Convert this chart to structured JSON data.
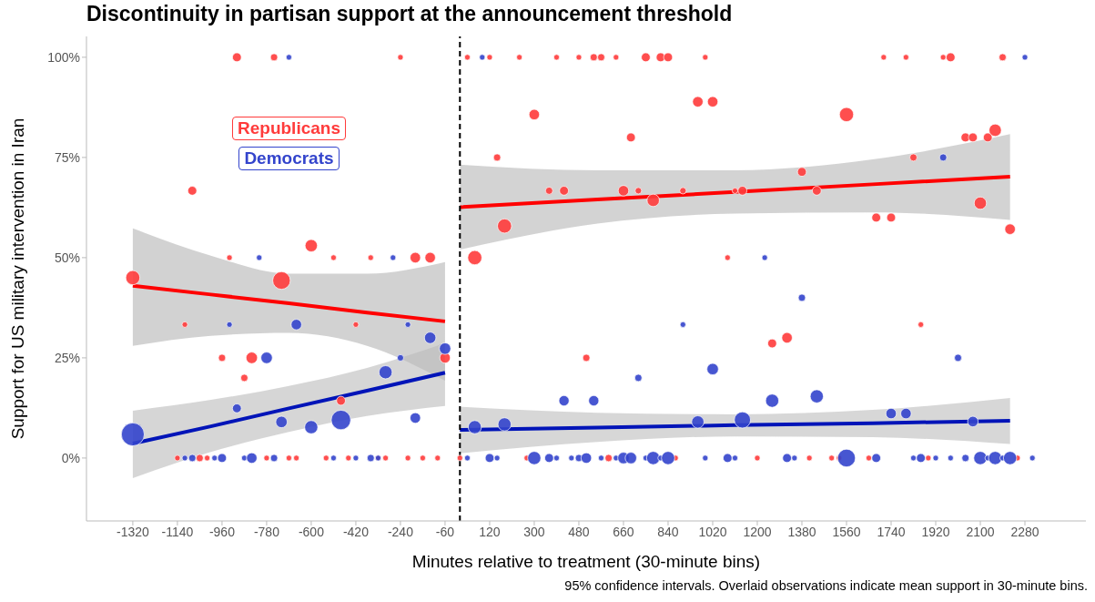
{
  "chart_data": {
    "type": "bubble",
    "title": "Discontinuity in partisan support at the announcement threshold",
    "xlabel": "Minutes relative to treatment (30-minute bins)",
    "ylabel": "Support for US military intervention in Iran",
    "annotations": [
      "95% confidence intervals. Overlaid observations indicate mean support in 30-minute bins."
    ],
    "xlim": [
      -1507,
      2526
    ],
    "ylim": [
      -15.7,
      105.2
    ],
    "xticks": [
      -1320,
      -1140,
      -960,
      -780,
      -600,
      -420,
      -240,
      -60,
      120,
      300,
      480,
      660,
      840,
      1020,
      1200,
      1380,
      1560,
      1740,
      1920,
      2100,
      2280
    ],
    "yticks": [
      {
        "value": 0,
        "label": "0%"
      },
      {
        "value": 25,
        "label": "25%"
      },
      {
        "value": 50,
        "label": "50%"
      },
      {
        "value": 75,
        "label": "75%"
      },
      {
        "value": 100,
        "label": "100%"
      }
    ],
    "legend": "top left",
    "ref_lines": [
      {
        "axis": "x",
        "value": 0,
        "color": "#000000",
        "line_style": "dashed"
      }
    ],
    "series": [
      {
        "type": "line",
        "color": "#ff0000",
        "x": [
          -1320,
          -1005,
          -690,
          -375,
          -60
        ],
        "values": [
          43,
          40.8,
          38.6,
          36.3,
          34.1
        ],
        "lower": [
          28,
          30.5,
          31.2,
          28,
          19.3
        ],
        "upper": [
          57.3,
          50.5,
          46,
          46,
          48.9
        ]
      },
      {
        "type": "line",
        "color": "#0014b8",
        "x": [
          -1320,
          -1005,
          -690,
          -375,
          -60
        ],
        "values": [
          3.6,
          7.9,
          12.4,
          16.8,
          21.3
        ],
        "lower": [
          -5,
          1.5,
          6.5,
          10.5,
          13
        ],
        "upper": [
          11.8,
          14.5,
          18,
          22.5,
          28.7
        ]
      },
      {
        "type": "line",
        "color": "#ff0000",
        "x": [
          0,
          555,
          1110,
          1665,
          2220
        ],
        "values": [
          62.6,
          64.5,
          66.4,
          68.3,
          70.2
        ],
        "lower": [
          52,
          58.5,
          61,
          61.3,
          59.4
        ],
        "upper": [
          73.2,
          71.8,
          71.8,
          74.5,
          80.8
        ]
      },
      {
        "type": "line",
        "color": "#0014b8",
        "x": [
          0,
          555,
          1110,
          1665,
          2220
        ],
        "values": [
          7,
          7.6,
          8.2,
          8.7,
          9.3
        ],
        "lower": [
          1.2,
          4,
          5.4,
          5.2,
          3.5
        ],
        "upper": [
          12.8,
          11.3,
          10.9,
          12,
          15
        ]
      },
      {
        "name": "Republicans",
        "marker": "circle",
        "color": "#ff3b3b",
        "x": [
          -900,
          -750,
          -240,
          30,
          120,
          240,
          390,
          480,
          540,
          570,
          630,
          750,
          810,
          840,
          990,
          1710,
          1800,
          1950,
          1980,
          2190,
          -1080,
          -600,
          -120,
          -180,
          -360,
          -510,
          -930,
          -1320,
          -720,
          -1110,
          -420,
          -960,
          -840,
          -870,
          -480,
          -60,
          -1140,
          -1050,
          -1020,
          -780,
          -690,
          -660,
          -540,
          -450,
          -330,
          -300,
          -210,
          -150,
          -90,
          300,
          150,
          690,
          960,
          1020,
          360,
          420,
          660,
          720,
          900,
          1110,
          1140,
          780,
          180,
          60,
          1080,
          1560,
          2040,
          2070,
          2130,
          2160,
          1830,
          1380,
          1440,
          1680,
          1740,
          2100,
          2220,
          510,
          1260,
          1320,
          1860,
          0,
          270,
          600,
          870,
          1200,
          1410,
          1500,
          1530,
          1650,
          1890,
          2250
        ],
        "values": [
          100,
          100,
          100,
          100,
          100,
          100,
          100,
          100,
          100,
          100,
          100,
          100,
          100,
          100,
          100,
          100,
          100,
          100,
          100,
          100,
          66.7,
          53,
          50,
          50,
          50,
          50,
          50,
          45,
          44.3,
          33.3,
          33.3,
          25,
          25,
          20,
          14.3,
          25,
          0,
          0,
          0,
          0,
          0,
          0,
          0,
          0,
          0,
          0,
          0,
          0,
          0,
          85.7,
          75,
          80,
          88.9,
          88.9,
          66.7,
          66.7,
          66.7,
          66.7,
          66.7,
          66.7,
          66.7,
          64.3,
          57.9,
          50,
          50,
          85.7,
          80,
          80,
          80,
          81.8,
          75,
          71.4,
          66.7,
          60,
          60,
          63.6,
          57.1,
          25,
          28.6,
          30,
          33.3,
          0,
          0,
          0,
          0,
          0,
          0,
          0,
          0,
          0,
          0,
          0
        ],
        "sizes": [
          0.15,
          0.1,
          0.06,
          0.06,
          0.06,
          0.06,
          0.06,
          0.06,
          0.1,
          0.1,
          0.06,
          0.15,
          0.15,
          0.15,
          0.06,
          0.06,
          0.06,
          0.06,
          0.15,
          0.1,
          0.15,
          0.29,
          0.21,
          0.21,
          0.06,
          0.06,
          0.06,
          0.38,
          0.59,
          0.06,
          0.06,
          0.1,
          0.25,
          0.1,
          0.15,
          0.21,
          0.06,
          0.1,
          0.06,
          0.06,
          0.06,
          0.06,
          0.06,
          0.06,
          0.06,
          0.06,
          0.06,
          0.06,
          0.06,
          0.21,
          0.1,
          0.15,
          0.21,
          0.21,
          0.1,
          0.15,
          0.21,
          0.08,
          0.08,
          0.06,
          0.15,
          0.29,
          0.38,
          0.38,
          0.06,
          0.38,
          0.15,
          0.15,
          0.15,
          0.29,
          0.1,
          0.15,
          0.15,
          0.15,
          0.15,
          0.29,
          0.21,
          0.1,
          0.15,
          0.21,
          0.06,
          0.06,
          0.06,
          0.1,
          0.06,
          0.06,
          0.06,
          0.06,
          0.06,
          0.06,
          0.06,
          0.06
        ]
      },
      {
        "name": "Democrats",
        "marker": "circle",
        "color": "#3344cc",
        "x": [
          -690,
          90,
          2280,
          -1320,
          -930,
          -660,
          -210,
          -120,
          -60,
          -780,
          -240,
          -300,
          -900,
          -720,
          -600,
          -480,
          -180,
          -810,
          -270,
          -1110,
          -1080,
          -990,
          -960,
          -870,
          -840,
          -750,
          -510,
          -420,
          -360,
          -330,
          1230,
          1950,
          900,
          1020,
          720,
          420,
          540,
          60,
          180,
          960,
          1140,
          1380,
          1260,
          1440,
          1740,
          1800,
          2010,
          2070,
          30,
          120,
          150,
          300,
          360,
          390,
          450,
          480,
          510,
          570,
          630,
          660,
          690,
          750,
          780,
          810,
          840,
          990,
          1080,
          1110,
          1320,
          1350,
          1560,
          1680,
          1830,
          1860,
          1920,
          1980,
          2040,
          2100,
          2130,
          2160,
          2190,
          2220,
          2310
        ],
        "values": [
          100,
          100,
          100,
          5.9,
          33.3,
          33.3,
          33.3,
          30,
          27.3,
          25,
          25,
          21.4,
          12.4,
          9,
          7.7,
          9.5,
          10,
          50,
          50,
          0,
          0,
          0,
          0,
          0,
          0,
          0,
          0,
          0,
          0,
          0,
          50,
          75,
          33.3,
          22.2,
          20,
          14.3,
          14.3,
          7.7,
          8.4,
          9,
          9.5,
          40,
          14.3,
          15.4,
          11.1,
          11.1,
          25,
          9.1,
          0,
          0,
          0,
          0,
          0,
          0,
          0,
          0,
          0,
          0,
          0,
          0,
          0,
          0,
          0,
          0,
          0,
          0,
          0,
          0,
          0,
          0,
          0,
          0,
          0,
          0,
          0,
          0,
          0,
          0,
          0,
          0,
          0,
          0,
          0
        ],
        "sizes": [
          0.06,
          0.06,
          0.06,
          1,
          0.06,
          0.21,
          0.06,
          0.25,
          0.25,
          0.25,
          0.08,
          0.33,
          0.15,
          0.25,
          0.33,
          0.72,
          0.21,
          0.06,
          0.06,
          0.06,
          0.1,
          0.06,
          0.15,
          0.06,
          0.21,
          0.1,
          0.06,
          0.06,
          0.1,
          0.06,
          0.06,
          0.1,
          0.06,
          0.25,
          0.1,
          0.2,
          0.2,
          0.33,
          0.33,
          0.29,
          0.5,
          0.1,
          0.33,
          0.33,
          0.21,
          0.21,
          0.1,
          0.21,
          0.06,
          0.15,
          0.06,
          0.33,
          0.15,
          0.06,
          0.06,
          0.1,
          0.21,
          0.06,
          0.06,
          0.25,
          0.25,
          0.06,
          0.33,
          0.06,
          0.33,
          0.06,
          0.15,
          0.06,
          0.15,
          0.06,
          0.6,
          0.15,
          0.06,
          0.15,
          0.06,
          0.06,
          0.1,
          0.33,
          0.06,
          0.33,
          0.06,
          0.33,
          0.06
        ]
      }
    ]
  }
}
